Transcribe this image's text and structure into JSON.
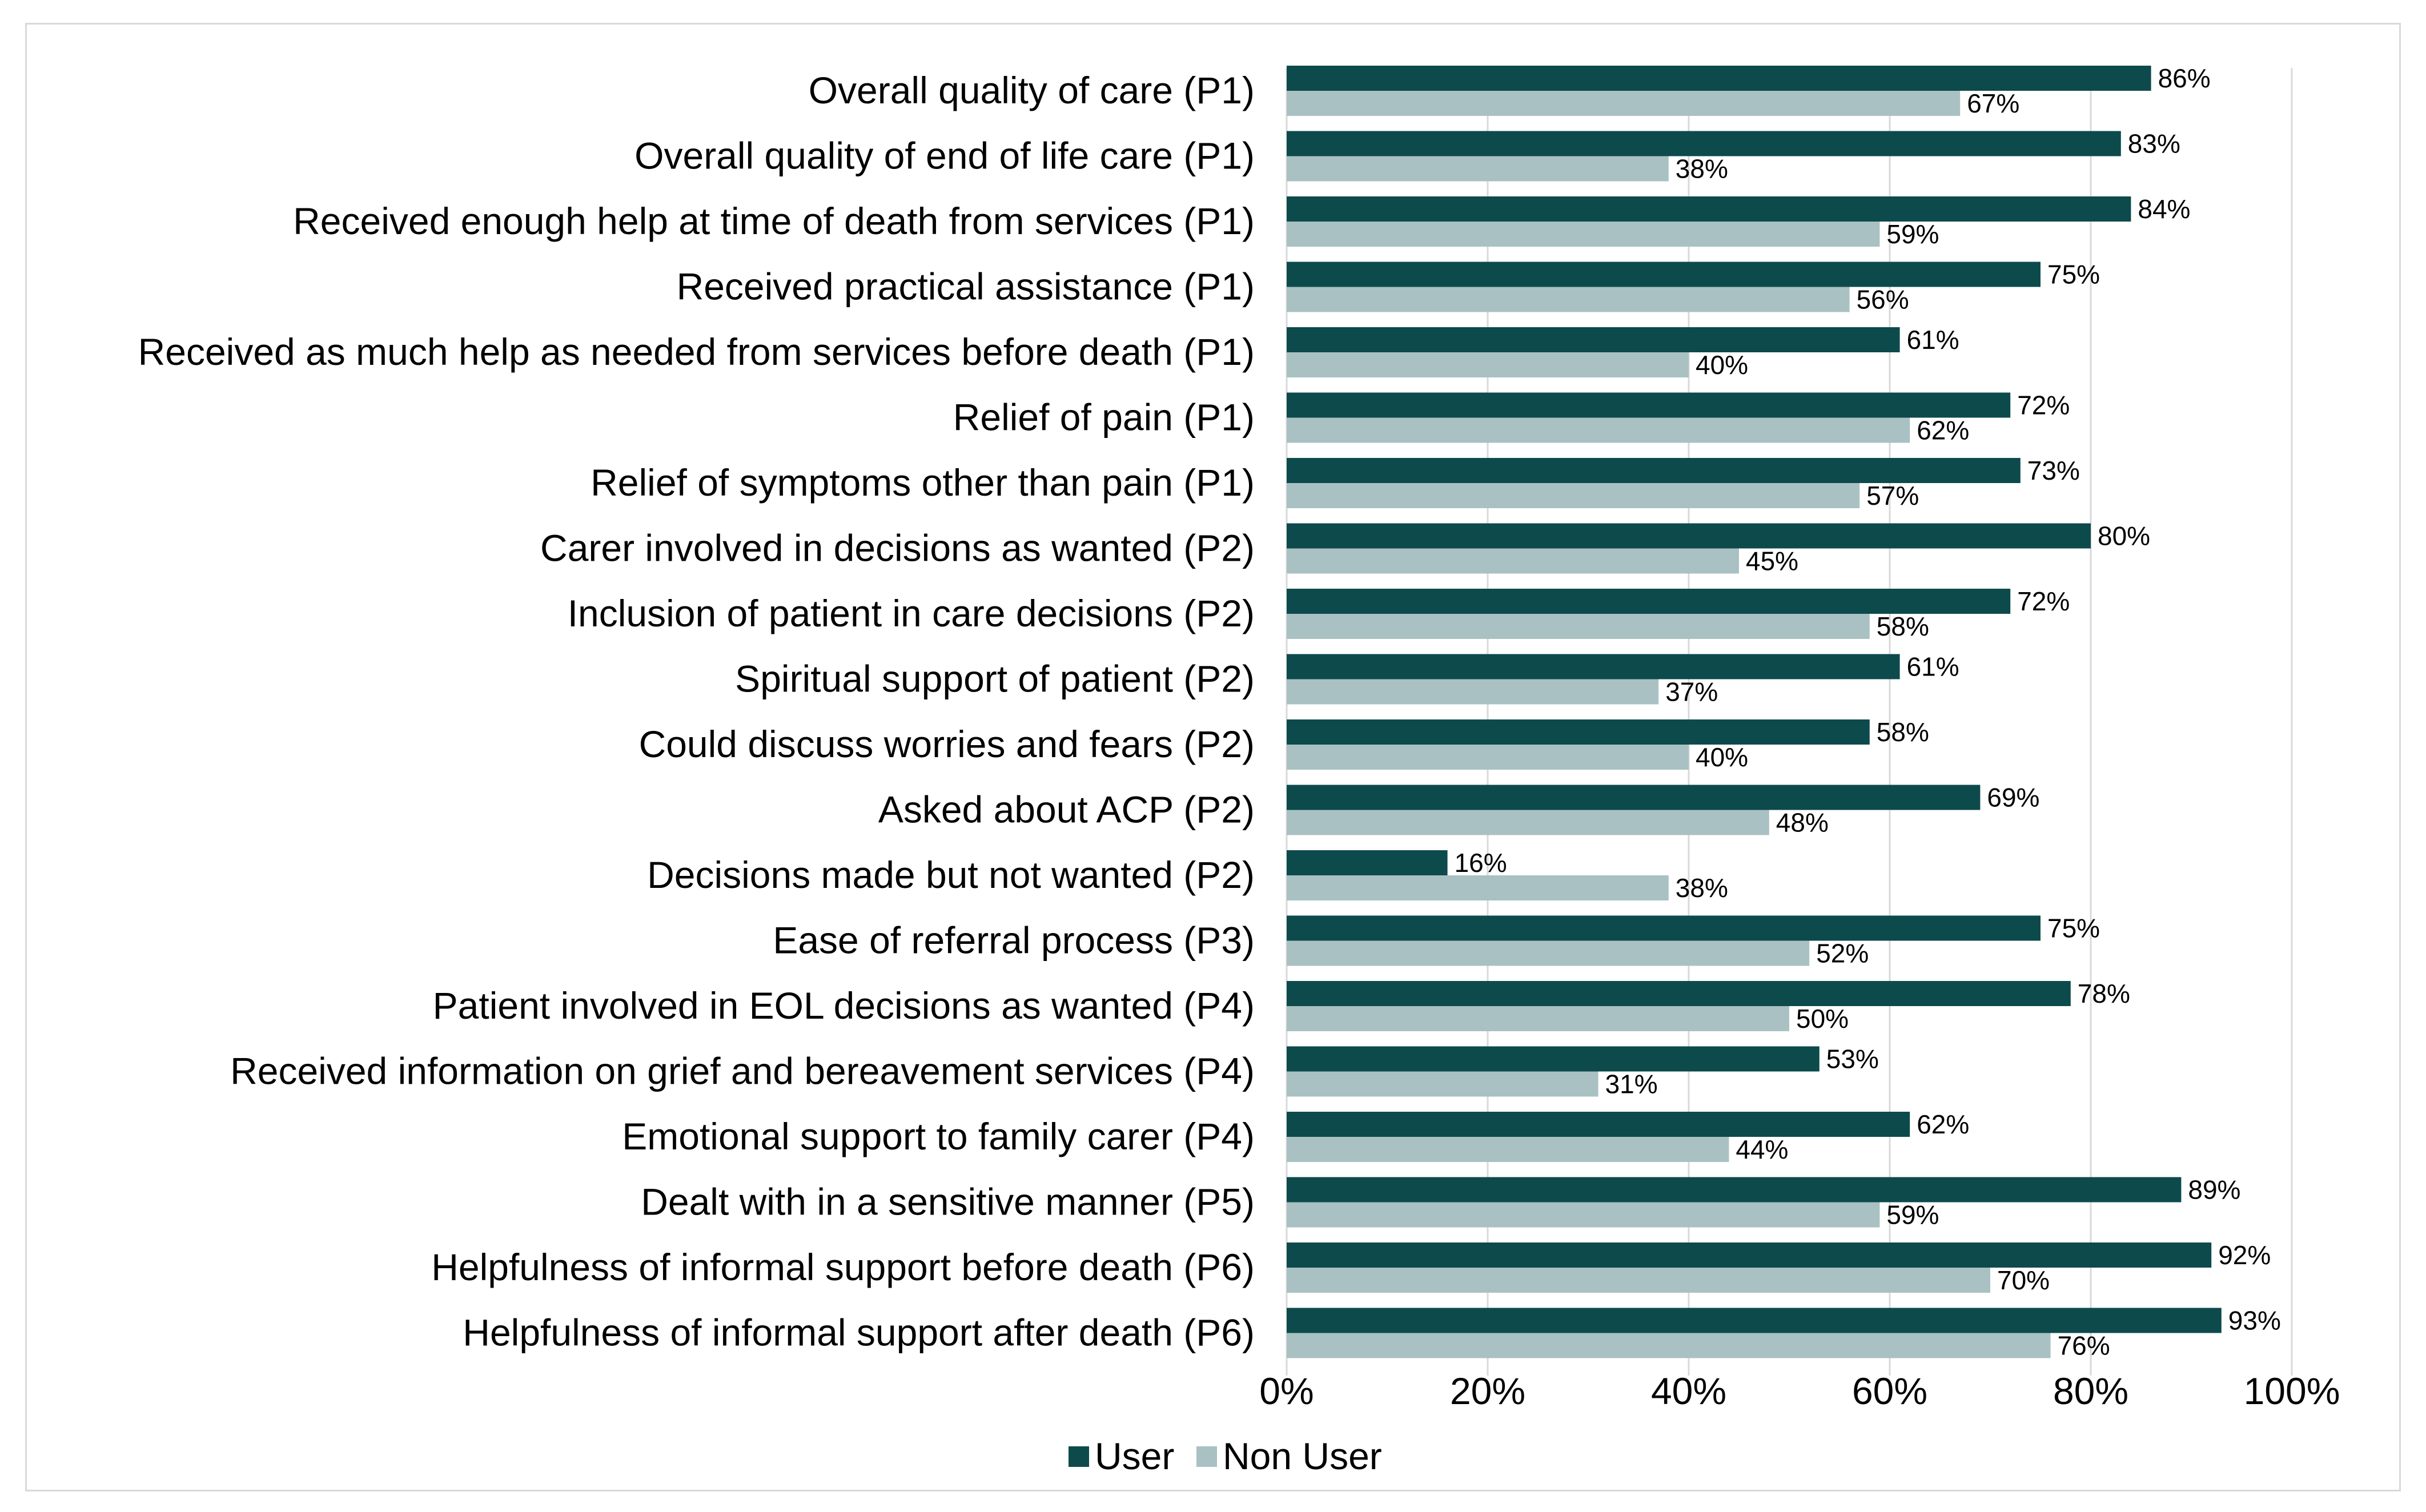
{
  "chart_data": {
    "type": "bar",
    "orientation": "horizontal",
    "categories": [
      "Overall quality of care (P1)",
      "Overall quality of end of life care (P1)",
      "Received enough help at time of death from services (P1)",
      "Received practical assistance (P1)",
      "Received as much help as needed from services before death (P1)",
      "Relief of pain (P1)",
      "Relief of symptoms other than pain (P1)",
      "Carer involved in decisions as wanted (P2)",
      "Inclusion of patient in care decisions (P2)",
      "Spiritual support of patient (P2)",
      "Could discuss worries and fears (P2)",
      "Asked about ACP (P2)",
      "Decisions made but not wanted (P2)",
      "Ease of referral process (P3)",
      "Patient involved in EOL decisions as wanted (P4)",
      "Received information on grief and bereavement services (P4)",
      "Emotional support to family carer (P4)",
      "Dealt with in a sensitive manner (P5)",
      "Helpfulness of informal support before death (P6)",
      "Helpfulness of informal support after death (P6)"
    ],
    "series": [
      {
        "name": "User",
        "color": "#0d4a4c",
        "values": [
          86,
          83,
          84,
          75,
          61,
          72,
          73,
          80,
          72,
          61,
          58,
          69,
          16,
          75,
          78,
          53,
          62,
          89,
          92,
          93
        ]
      },
      {
        "name": "Non User",
        "color": "#a9c1c2",
        "values": [
          67,
          38,
          59,
          56,
          40,
          62,
          57,
          45,
          58,
          37,
          40,
          48,
          38,
          52,
          50,
          31,
          44,
          59,
          70,
          76
        ]
      }
    ],
    "xticks": [
      "0%",
      "20%",
      "40%",
      "60%",
      "80%",
      "100%"
    ],
    "xlim": [
      0,
      100
    ],
    "value_suffix": "%",
    "grid": true,
    "legend_position": "bottom"
  }
}
